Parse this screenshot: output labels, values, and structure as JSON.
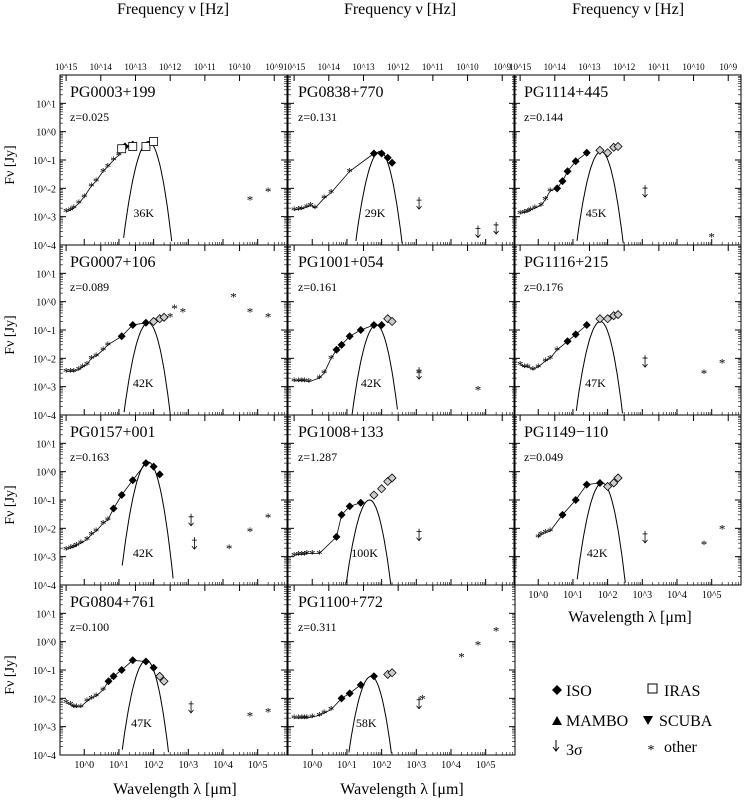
{
  "figure": {
    "top_axis_label": "Frequency ν  [Hz]",
    "bottom_axis_label": "Wavelength λ  [μm]",
    "y_axis_label": "Fν [Jy]",
    "top_ticks": [
      "10^15",
      "10^14",
      "10^13",
      "10^12",
      "10^11",
      "10^10",
      "10^9"
    ],
    "bottom_ticks": [
      "10^0",
      "10^1",
      "10^2",
      "10^3",
      "10^4",
      "10^5"
    ],
    "left_ticks": [
      "10^1",
      "10^0",
      "10^-1",
      "10^-2",
      "10^-3",
      "10^-4"
    ]
  },
  "legend": {
    "iso": "ISO",
    "iras": "IRAS",
    "mambo": "MAMBO",
    "scuba": "SCUBA",
    "sigma": "3σ",
    "other": "other"
  },
  "chart_data": [
    {
      "type": "scatter",
      "name": "PG0003+199",
      "z": "z=0.025",
      "temp": "36K",
      "xscale": "log",
      "yscale": "log",
      "xlim": [
        0.2,
        700000
      ],
      "ylim": [
        0.0001,
        100
      ],
      "other": [
        [
          0.3,
          0.0015
        ],
        [
          0.4,
          0.0017
        ],
        [
          0.5,
          0.002
        ],
        [
          0.7,
          0.003
        ],
        [
          1,
          0.005
        ],
        [
          1.6,
          0.012
        ],
        [
          2.2,
          0.018
        ],
        [
          3.5,
          0.04
        ],
        [
          4.8,
          0.06
        ],
        [
          7,
          0.1
        ],
        [
          10,
          0.15
        ],
        [
          12,
          0.2
        ],
        [
          60000,
          0.004
        ],
        [
          200000,
          0.008
        ]
      ],
      "iso": [
        [
          15,
          0.3
        ],
        [
          25,
          0.35
        ]
      ],
      "iras": [
        [
          12,
          0.25
        ],
        [
          25,
          0.3
        ],
        [
          60,
          0.3
        ],
        [
          100,
          0.45
        ]
      ],
      "bb_peak": [
        72,
        0.45
      ]
    },
    {
      "type": "scatter",
      "name": "PG0838+770",
      "z": "z=0.131",
      "temp": "29K",
      "xscale": "log",
      "yscale": "log",
      "xlim": [
        0.2,
        700000
      ],
      "ylim": [
        0.0001,
        100
      ],
      "other": [
        [
          0.3,
          0.0017
        ],
        [
          0.4,
          0.0018
        ],
        [
          0.5,
          0.0019
        ],
        [
          0.7,
          0.0022
        ],
        [
          0.9,
          0.0025
        ],
        [
          1.2,
          0.002
        ],
        [
          2.2,
          0.0045
        ],
        [
          3.5,
          0.007
        ],
        [
          12,
          0.04
        ]
      ],
      "iso": [
        [
          60,
          0.17
        ],
        [
          100,
          0.17
        ],
        [
          150,
          0.12
        ],
        [
          200,
          0.08
        ]
      ],
      "limits": [
        [
          1200,
          0.003
        ],
        [
          60000,
          0.0003
        ],
        [
          200000,
          0.0004
        ]
      ],
      "bb_peak": [
        90,
        0.2
      ]
    },
    {
      "type": "scatter",
      "name": "PG1114+445",
      "z": "z=0.144",
      "temp": "45K",
      "xscale": "log",
      "yscale": "log",
      "xlim": [
        0.2,
        700000
      ],
      "ylim": [
        0.0001,
        100
      ],
      "other": [
        [
          0.3,
          0.0013
        ],
        [
          0.4,
          0.0014
        ],
        [
          0.5,
          0.0015
        ],
        [
          0.6,
          0.0017
        ],
        [
          0.8,
          0.002
        ],
        [
          1.2,
          0.0025
        ],
        [
          1.6,
          0.004
        ],
        [
          2.2,
          0.008
        ],
        [
          100000,
          0.0002
        ]
      ],
      "iso": [
        [
          3.5,
          0.01
        ],
        [
          5,
          0.018
        ],
        [
          7,
          0.04
        ],
        [
          12,
          0.09
        ],
        [
          25,
          0.18
        ]
      ],
      "iso_open": [
        [
          60,
          0.22
        ],
        [
          100,
          0.18
        ],
        [
          150,
          0.28
        ],
        [
          200,
          0.3
        ]
      ],
      "limits": [
        [
          1200,
          0.008
        ]
      ],
      "bb_peak": [
        65,
        0.2
      ]
    },
    {
      "type": "scatter",
      "name": "PG0007+106",
      "z": "z=0.089",
      "temp": "42K",
      "xscale": "log",
      "yscale": "log",
      "xlim": [
        0.2,
        700000
      ],
      "ylim": [
        0.0001,
        100
      ],
      "other": [
        [
          0.3,
          0.0035
        ],
        [
          0.4,
          0.0035
        ],
        [
          0.5,
          0.0035
        ],
        [
          0.7,
          0.004
        ],
        [
          0.9,
          0.005
        ],
        [
          1.2,
          0.006
        ],
        [
          1.6,
          0.01
        ],
        [
          2.2,
          0.012
        ],
        [
          3.5,
          0.02
        ],
        [
          4.8,
          0.03
        ],
        [
          200,
          0.28
        ],
        [
          300,
          0.3
        ],
        [
          400,
          0.6
        ],
        [
          700,
          0.45
        ],
        [
          20000,
          1.5
        ],
        [
          60000,
          0.45
        ],
        [
          200000,
          0.3
        ]
      ],
      "iso": [
        [
          12,
          0.06
        ],
        [
          25,
          0.15
        ],
        [
          60,
          0.18
        ]
      ],
      "iso_open": [
        [
          100,
          0.2
        ],
        [
          150,
          0.25
        ],
        [
          200,
          0.28
        ]
      ],
      "bb_peak": [
        70,
        0.18
      ]
    },
    {
      "type": "scatter",
      "name": "PG1001+054",
      "z": "z=0.161",
      "temp": "42K",
      "xscale": "log",
      "yscale": "log",
      "xlim": [
        0.2,
        700000
      ],
      "ylim": [
        0.0001,
        100
      ],
      "other": [
        [
          0.3,
          0.0016
        ],
        [
          0.4,
          0.0016
        ],
        [
          0.5,
          0.0016
        ],
        [
          0.6,
          0.0016
        ],
        [
          0.8,
          0.0015
        ],
        [
          1.6,
          0.002
        ],
        [
          2.2,
          0.003
        ],
        [
          3.5,
          0.01
        ],
        [
          1200,
          0.003
        ],
        [
          60000,
          0.0008
        ]
      ],
      "iso": [
        [
          5,
          0.02
        ],
        [
          7,
          0.03
        ],
        [
          12,
          0.06
        ],
        [
          25,
          0.1
        ],
        [
          60,
          0.15
        ],
        [
          100,
          0.15
        ]
      ],
      "iso_open": [
        [
          150,
          0.25
        ],
        [
          200,
          0.2
        ]
      ],
      "limits": [
        [
          1200,
          0.003
        ]
      ],
      "bb_peak": [
        70,
        0.15
      ]
    },
    {
      "type": "scatter",
      "name": "PG1116+215",
      "z": "z=0.176",
      "temp": "47K",
      "xscale": "log",
      "yscale": "log",
      "xlim": [
        0.2,
        700000
      ],
      "ylim": [
        0.0001,
        100
      ],
      "other": [
        [
          0.3,
          0.006
        ],
        [
          0.4,
          0.005
        ],
        [
          0.5,
          0.005
        ],
        [
          0.7,
          0.004
        ],
        [
          1,
          0.005
        ],
        [
          1.6,
          0.008
        ],
        [
          2.2,
          0.01
        ],
        [
          3.5,
          0.02
        ],
        [
          60000,
          0.003
        ],
        [
          200000,
          0.007
        ]
      ],
      "iso": [
        [
          7,
          0.04
        ],
        [
          12,
          0.07
        ],
        [
          25,
          0.15
        ]
      ],
      "iso_open": [
        [
          60,
          0.25
        ],
        [
          100,
          0.25
        ],
        [
          150,
          0.32
        ],
        [
          200,
          0.35
        ]
      ],
      "limits": [
        [
          1200,
          0.008
        ]
      ],
      "bb_peak": [
        62,
        0.2
      ]
    },
    {
      "type": "scatter",
      "name": "PG0157+001",
      "z": "z=0.163",
      "temp": "42K",
      "xscale": "log",
      "yscale": "log",
      "xlim": [
        0.2,
        700000
      ],
      "ylim": [
        0.0001,
        100
      ],
      "other": [
        [
          0.3,
          0.0018
        ],
        [
          0.4,
          0.002
        ],
        [
          0.5,
          0.0022
        ],
        [
          0.6,
          0.0025
        ],
        [
          0.8,
          0.003
        ],
        [
          1.2,
          0.004
        ],
        [
          1.6,
          0.006
        ],
        [
          2.2,
          0.008
        ],
        [
          3.5,
          0.015
        ],
        [
          4.8,
          0.02
        ],
        [
          15000,
          0.002
        ],
        [
          60000,
          0.008
        ],
        [
          200000,
          0.025
        ]
      ],
      "iso": [
        [
          7,
          0.05
        ],
        [
          12,
          0.15
        ],
        [
          25,
          0.5
        ],
        [
          60,
          2
        ],
        [
          100,
          1.5
        ],
        [
          150,
          0.8
        ]
      ],
      "limits": [
        [
          1200,
          0.02
        ],
        [
          1500,
          0.003
        ]
      ],
      "bb_peak": [
        70,
        2.2
      ]
    },
    {
      "type": "scatter",
      "name": "PG1008+133",
      "z": "z=1.287",
      "temp": "100K",
      "xscale": "log",
      "yscale": "log",
      "xlim": [
        0.2,
        700000
      ],
      "ylim": [
        0.0001,
        100
      ],
      "other": [
        [
          0.3,
          0.0011
        ],
        [
          0.4,
          0.0012
        ],
        [
          0.5,
          0.0012
        ],
        [
          0.6,
          0.0012
        ],
        [
          0.7,
          0.0013
        ],
        [
          1,
          0.0013
        ],
        [
          1.6,
          0.0013
        ]
      ],
      "iso": [
        [
          5,
          0.005
        ],
        [
          7,
          0.03
        ],
        [
          12,
          0.06
        ],
        [
          25,
          0.08
        ]
      ],
      "iso_open": [
        [
          60,
          0.15
        ],
        [
          100,
          0.25
        ],
        [
          150,
          0.45
        ],
        [
          200,
          0.6
        ]
      ],
      "limits": [
        [
          1200,
          0.006
        ]
      ],
      "bb_peak": [
        45,
        0.1
      ]
    },
    {
      "type": "scatter",
      "name": "PG1149−110",
      "z": "z=0.049",
      "temp": "42K",
      "xscale": "log",
      "yscale": "log",
      "xlim": [
        0.2,
        700000
      ],
      "ylim": [
        0.0001,
        100
      ],
      "other": [
        [
          1,
          0.005
        ],
        [
          1.2,
          0.006
        ],
        [
          1.6,
          0.007
        ],
        [
          2.2,
          0.008
        ],
        [
          60000,
          0.0028
        ],
        [
          200000,
          0.01
        ]
      ],
      "iso": [
        [
          5,
          0.03
        ],
        [
          12,
          0.1
        ],
        [
          25,
          0.35
        ],
        [
          60,
          0.4
        ]
      ],
      "iso_open": [
        [
          100,
          0.3
        ],
        [
          150,
          0.4
        ],
        [
          200,
          0.6
        ]
      ],
      "limits": [
        [
          1200,
          0.005
        ]
      ],
      "bb_peak": [
        70,
        0.4
      ]
    },
    {
      "type": "scatter",
      "name": "PG0804+761",
      "z": "z=0.100",
      "temp": "47K",
      "xscale": "log",
      "yscale": "log",
      "xlim": [
        0.2,
        700000
      ],
      "ylim": [
        0.0001,
        100
      ],
      "other": [
        [
          0.3,
          0.007
        ],
        [
          0.4,
          0.006
        ],
        [
          0.5,
          0.005
        ],
        [
          0.6,
          0.005
        ],
        [
          0.8,
          0.005
        ],
        [
          1.2,
          0.008
        ],
        [
          1.6,
          0.01
        ],
        [
          2.2,
          0.012
        ],
        [
          3.5,
          0.02
        ],
        [
          60000,
          0.0025
        ],
        [
          200000,
          0.0035
        ]
      ],
      "iso": [
        [
          5,
          0.04
        ],
        [
          7,
          0.06
        ],
        [
          12,
          0.1
        ],
        [
          25,
          0.22
        ],
        [
          60,
          0.2
        ],
        [
          100,
          0.12
        ]
      ],
      "iso_open": [
        [
          150,
          0.06
        ],
        [
          200,
          0.04
        ]
      ],
      "limits": [
        [
          1200,
          0.005
        ]
      ],
      "bb_peak": [
        62,
        0.22
      ]
    },
    {
      "type": "scatter",
      "name": "PG1100+772",
      "z": "z=0.311",
      "temp": "58K",
      "xscale": "log",
      "yscale": "log",
      "xlim": [
        0.2,
        700000
      ],
      "ylim": [
        0.0001,
        100
      ],
      "other": [
        [
          0.3,
          0.002
        ],
        [
          0.4,
          0.002
        ],
        [
          0.5,
          0.002
        ],
        [
          0.6,
          0.002
        ],
        [
          0.7,
          0.002
        ],
        [
          1,
          0.0022
        ],
        [
          1.6,
          0.0025
        ],
        [
          2.2,
          0.003
        ],
        [
          3.5,
          0.004
        ],
        [
          1500,
          0.01
        ],
        [
          20000,
          0.3
        ],
        [
          60000,
          0.8
        ],
        [
          200000,
          2.5
        ]
      ],
      "iso": [
        [
          7,
          0.01
        ],
        [
          12,
          0.015
        ],
        [
          25,
          0.03
        ],
        [
          60,
          0.06
        ]
      ],
      "iso_open": [
        [
          150,
          0.07
        ],
        [
          200,
          0.08
        ]
      ],
      "limits": [
        [
          1200,
          0.007
        ]
      ],
      "bb_peak": [
        50,
        0.06
      ]
    }
  ]
}
